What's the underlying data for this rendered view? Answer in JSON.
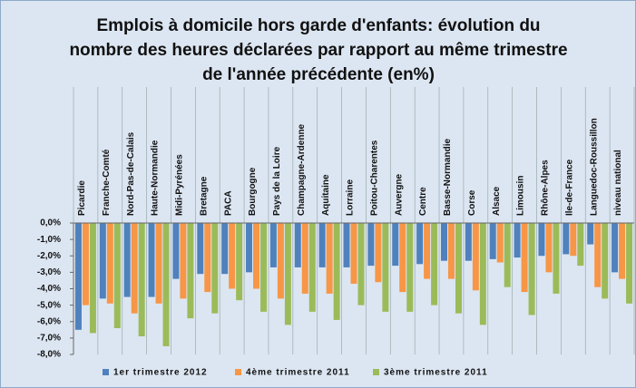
{
  "chart_data": {
    "type": "bar",
    "title": "Emplois à domicile hors garde d'enfants: évolution du nombre des heures déclarées par rapport au même trimestre de l'année précédente (en%)",
    "categories": [
      "Picardie",
      "Franche-Comté",
      "Nord-Pas-de-Calais",
      "Haute-Normandie",
      "Midi-Pyrénées",
      "Bretagne",
      "PACA",
      "Bourgogne",
      "Pays de la Loire",
      "Champagne-Ardenne",
      "Aquitaine",
      "Lorraine",
      "Poitou-Charentes",
      "Auvergne",
      "Centre",
      "Basse-Normandie",
      "Corse",
      "Alsace",
      "Limousin",
      "Rhône-Alpes",
      "Ile-de-France",
      "Languedoc-Roussillon",
      "niveau national"
    ],
    "series": [
      {
        "name": "1er trimestre 2012",
        "color": "#4f81bd",
        "values": [
          -6.5,
          -4.6,
          -4.5,
          -4.5,
          -3.4,
          -3.1,
          -3.1,
          -3.0,
          -2.7,
          -2.7,
          -2.7,
          -2.7,
          -2.6,
          -2.6,
          -2.5,
          -2.3,
          -2.3,
          -2.2,
          -2.1,
          -2.0,
          -1.9,
          -1.3,
          -3.0
        ]
      },
      {
        "name": "4ème trimestre 2011",
        "color": "#f79646",
        "values": [
          -5.0,
          -4.9,
          -5.5,
          -4.9,
          -4.6,
          -4.2,
          -4.0,
          -4.0,
          -4.6,
          -4.3,
          -4.3,
          -3.7,
          -3.6,
          -4.2,
          -3.4,
          -3.4,
          -4.1,
          -2.4,
          -4.2,
          -3.0,
          -2.0,
          -3.9,
          -3.4
        ]
      },
      {
        "name": "3ème trimestre 2011",
        "color": "#9bbb59",
        "values": [
          -6.7,
          -6.4,
          -6.9,
          -7.5,
          -5.8,
          -5.5,
          -4.7,
          -5.4,
          -6.2,
          -5.4,
          -5.9,
          -5.0,
          -5.4,
          -5.4,
          -5.0,
          -5.5,
          -6.2,
          -3.9,
          -5.6,
          -4.3,
          -2.6,
          -4.6,
          -4.9
        ]
      }
    ],
    "ylim": [
      -8,
      0
    ],
    "yticks": [
      {
        "value": 0,
        "label": "0,0%"
      },
      {
        "value": -1,
        "label": "-1,0%"
      },
      {
        "value": -2,
        "label": "-2,0%"
      },
      {
        "value": -3,
        "label": "-3,0%"
      },
      {
        "value": -4,
        "label": "-4,0%"
      },
      {
        "value": -5,
        "label": "-5,0%"
      },
      {
        "value": -6,
        "label": "-6,0%"
      },
      {
        "value": -7,
        "label": "-7,0%"
      },
      {
        "value": -8,
        "label": "-8,0%"
      }
    ],
    "legend": "bottom"
  }
}
